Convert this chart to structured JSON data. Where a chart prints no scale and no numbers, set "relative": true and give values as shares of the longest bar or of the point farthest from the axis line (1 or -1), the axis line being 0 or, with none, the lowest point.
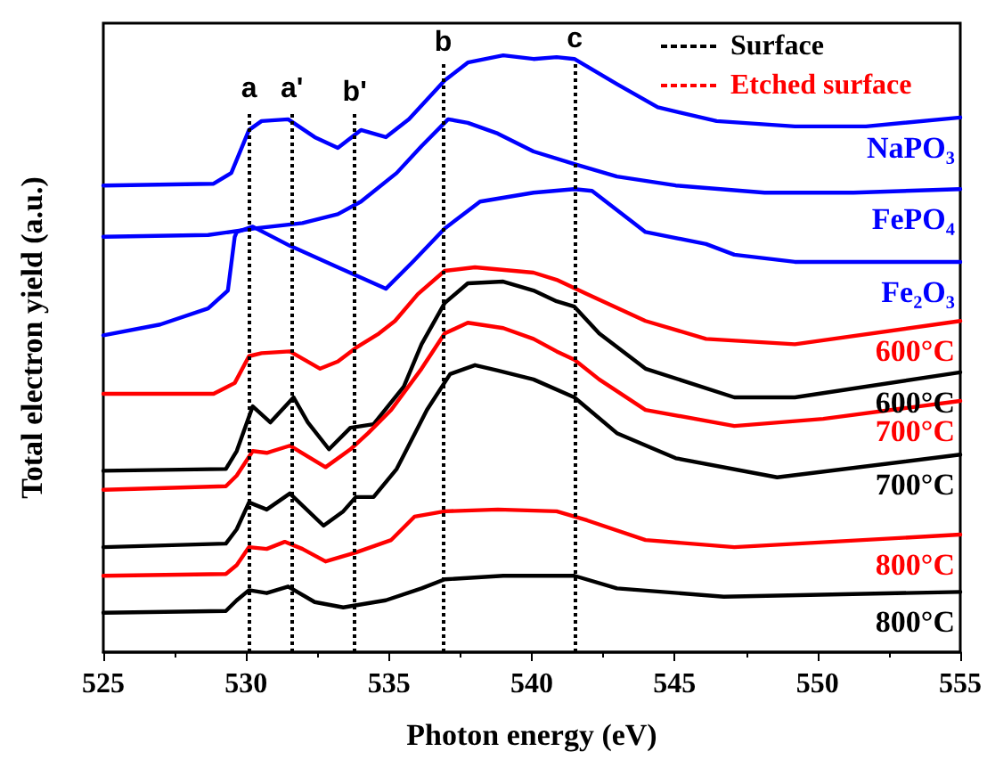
{
  "chart_data": {
    "type": "line",
    "relative": true,
    "xlabel": "Photon energy (eV)",
    "ylabel": "Total electron yield (a.u.)",
    "xlim": [
      525,
      555
    ],
    "xticks": [
      525,
      530,
      535,
      540,
      545,
      550,
      555
    ],
    "line_style": "solid",
    "marker": "none",
    "grid": false,
    "annotations": [
      "Surface",
      "Etched surface"
    ],
    "ref_lines": [
      {
        "axis": "x",
        "value": 530.1,
        "label": "a",
        "line_style": "dotted",
        "color": "#000000"
      },
      {
        "axis": "x",
        "value": 531.6,
        "label": "a'",
        "line_style": "dotted",
        "color": "#000000"
      },
      {
        "axis": "x",
        "value": 533.8,
        "label": "b'",
        "line_style": "dotted",
        "color": "#000000"
      },
      {
        "axis": "x",
        "value": 536.9,
        "label": "b",
        "line_style": "dotted",
        "color": "#000000"
      },
      {
        "axis": "x",
        "value": 541.5,
        "label": "c",
        "line_style": "dotted",
        "color": "#000000"
      }
    ],
    "series": [
      {
        "name": "NaPO₃",
        "color": "#0000ff",
        "x": [
          525,
          528.86,
          529.48,
          530.1,
          530.54,
          531.47,
          532.4,
          533.21,
          534.02,
          534.89,
          535.7,
          536.95,
          537.76,
          539.0,
          540.06,
          540.87,
          541.49,
          542.98,
          544.41,
          546.47,
          549.21,
          551.7,
          555
        ],
        "values": [
          0.782,
          0.785,
          0.803,
          0.875,
          0.89,
          0.893,
          0.863,
          0.845,
          0.875,
          0.863,
          0.893,
          0.958,
          0.988,
          1.0,
          0.994,
          0.997,
          0.994,
          0.952,
          0.913,
          0.89,
          0.881,
          0.881,
          0.896
        ]
      },
      {
        "name": "FePO₄",
        "color": "#0000ff",
        "x": [
          525,
          528.67,
          530.29,
          531.97,
          533.21,
          534.02,
          535.27,
          536.14,
          537.07,
          537.76,
          538.81,
          540.06,
          541.49,
          542.98,
          545.04,
          548.15,
          551.26,
          555
        ],
        "values": [
          0.696,
          0.699,
          0.71,
          0.719,
          0.734,
          0.755,
          0.803,
          0.848,
          0.893,
          0.887,
          0.869,
          0.839,
          0.818,
          0.797,
          0.782,
          0.77,
          0.77,
          0.776
        ]
      },
      {
        "name": "Fe₂O₃",
        "color": "#0000ff",
        "x": [
          525,
          526.99,
          528.67,
          529.36,
          529.6,
          529.67,
          530.23,
          531.53,
          533.21,
          534.89,
          535.83,
          536.95,
          538.19,
          540.06,
          541.49,
          542.11,
          543.98,
          546.1,
          547.09,
          549.21,
          555
        ],
        "values": [
          0.531,
          0.549,
          0.576,
          0.606,
          0.696,
          0.704,
          0.713,
          0.681,
          0.645,
          0.609,
          0.654,
          0.71,
          0.755,
          0.77,
          0.776,
          0.773,
          0.704,
          0.684,
          0.666,
          0.654,
          0.654
        ]
      },
      {
        "name": "600°C",
        "color": "#ff0000",
        "x": [
          525,
          528.86,
          529.6,
          530.1,
          530.54,
          531.53,
          532.59,
          533.21,
          533.84,
          534.65,
          535.21,
          536.01,
          536.95,
          538.01,
          540.06,
          540.87,
          541.93,
          543.98,
          546.1,
          549.21,
          555
        ],
        "values": [
          0.433,
          0.433,
          0.451,
          0.496,
          0.501,
          0.504,
          0.475,
          0.487,
          0.51,
          0.534,
          0.555,
          0.6,
          0.639,
          0.645,
          0.636,
          0.624,
          0.6,
          0.555,
          0.525,
          0.516,
          0.555
        ]
      },
      {
        "name": "600°C",
        "color": "#000000",
        "x": [
          525,
          529.29,
          529.67,
          530.23,
          530.85,
          531.66,
          532.16,
          532.9,
          533.65,
          534.46,
          535.52,
          536.14,
          536.95,
          537.76,
          539.0,
          540.06,
          540.87,
          541.49,
          542.36,
          543.98,
          547.09,
          549.21,
          555
        ],
        "values": [
          0.304,
          0.307,
          0.337,
          0.412,
          0.385,
          0.427,
          0.385,
          0.34,
          0.376,
          0.382,
          0.445,
          0.516,
          0.585,
          0.618,
          0.621,
          0.606,
          0.588,
          0.579,
          0.534,
          0.475,
          0.427,
          0.427,
          0.469
        ]
      },
      {
        "name": "700°C",
        "color": "#ff0000",
        "x": [
          525,
          529.29,
          529.67,
          530.23,
          530.72,
          531.53,
          532.78,
          533.65,
          534.27,
          535.08,
          536.14,
          536.95,
          537.76,
          539.0,
          540.06,
          540.87,
          541.49,
          542.36,
          543.98,
          547.09,
          550.2,
          555
        ],
        "values": [
          0.272,
          0.278,
          0.296,
          0.337,
          0.334,
          0.346,
          0.31,
          0.34,
          0.367,
          0.406,
          0.475,
          0.534,
          0.552,
          0.543,
          0.525,
          0.504,
          0.49,
          0.457,
          0.406,
          0.379,
          0.391,
          0.421
        ]
      },
      {
        "name": "700°C",
        "color": "#000000",
        "x": [
          525,
          529.29,
          529.67,
          530.1,
          530.72,
          531.53,
          532.71,
          533.4,
          533.84,
          534.46,
          535.27,
          536.33,
          537.14,
          538.01,
          538.81,
          540.06,
          541.49,
          542.98,
          545.04,
          548.59,
          555
        ],
        "values": [
          0.176,
          0.182,
          0.206,
          0.251,
          0.239,
          0.266,
          0.212,
          0.236,
          0.26,
          0.26,
          0.307,
          0.406,
          0.466,
          0.481,
          0.472,
          0.457,
          0.427,
          0.367,
          0.325,
          0.293,
          0.331
        ]
      },
      {
        "name": "800°C",
        "color": "#ff0000",
        "x": [
          525,
          529.29,
          529.67,
          530.1,
          530.72,
          531.35,
          531.97,
          532.78,
          533.84,
          535.08,
          535.89,
          536.95,
          538.81,
          540.87,
          541.93,
          543.98,
          547.09,
          555
        ],
        "values": [
          0.128,
          0.131,
          0.146,
          0.176,
          0.173,
          0.185,
          0.173,
          0.152,
          0.167,
          0.188,
          0.227,
          0.236,
          0.239,
          0.236,
          0.221,
          0.188,
          0.176,
          0.197
        ]
      },
      {
        "name": "800°C",
        "color": "#000000",
        "x": [
          525,
          529.29,
          529.67,
          530.1,
          530.72,
          531.47,
          532.4,
          533.4,
          534.89,
          536.14,
          536.95,
          539.0,
          541.49,
          542.98,
          546.72,
          555
        ],
        "values": [
          0.066,
          0.069,
          0.087,
          0.104,
          0.099,
          0.11,
          0.084,
          0.075,
          0.087,
          0.107,
          0.122,
          0.128,
          0.128,
          0.107,
          0.093,
          0.101
        ]
      }
    ]
  }
}
